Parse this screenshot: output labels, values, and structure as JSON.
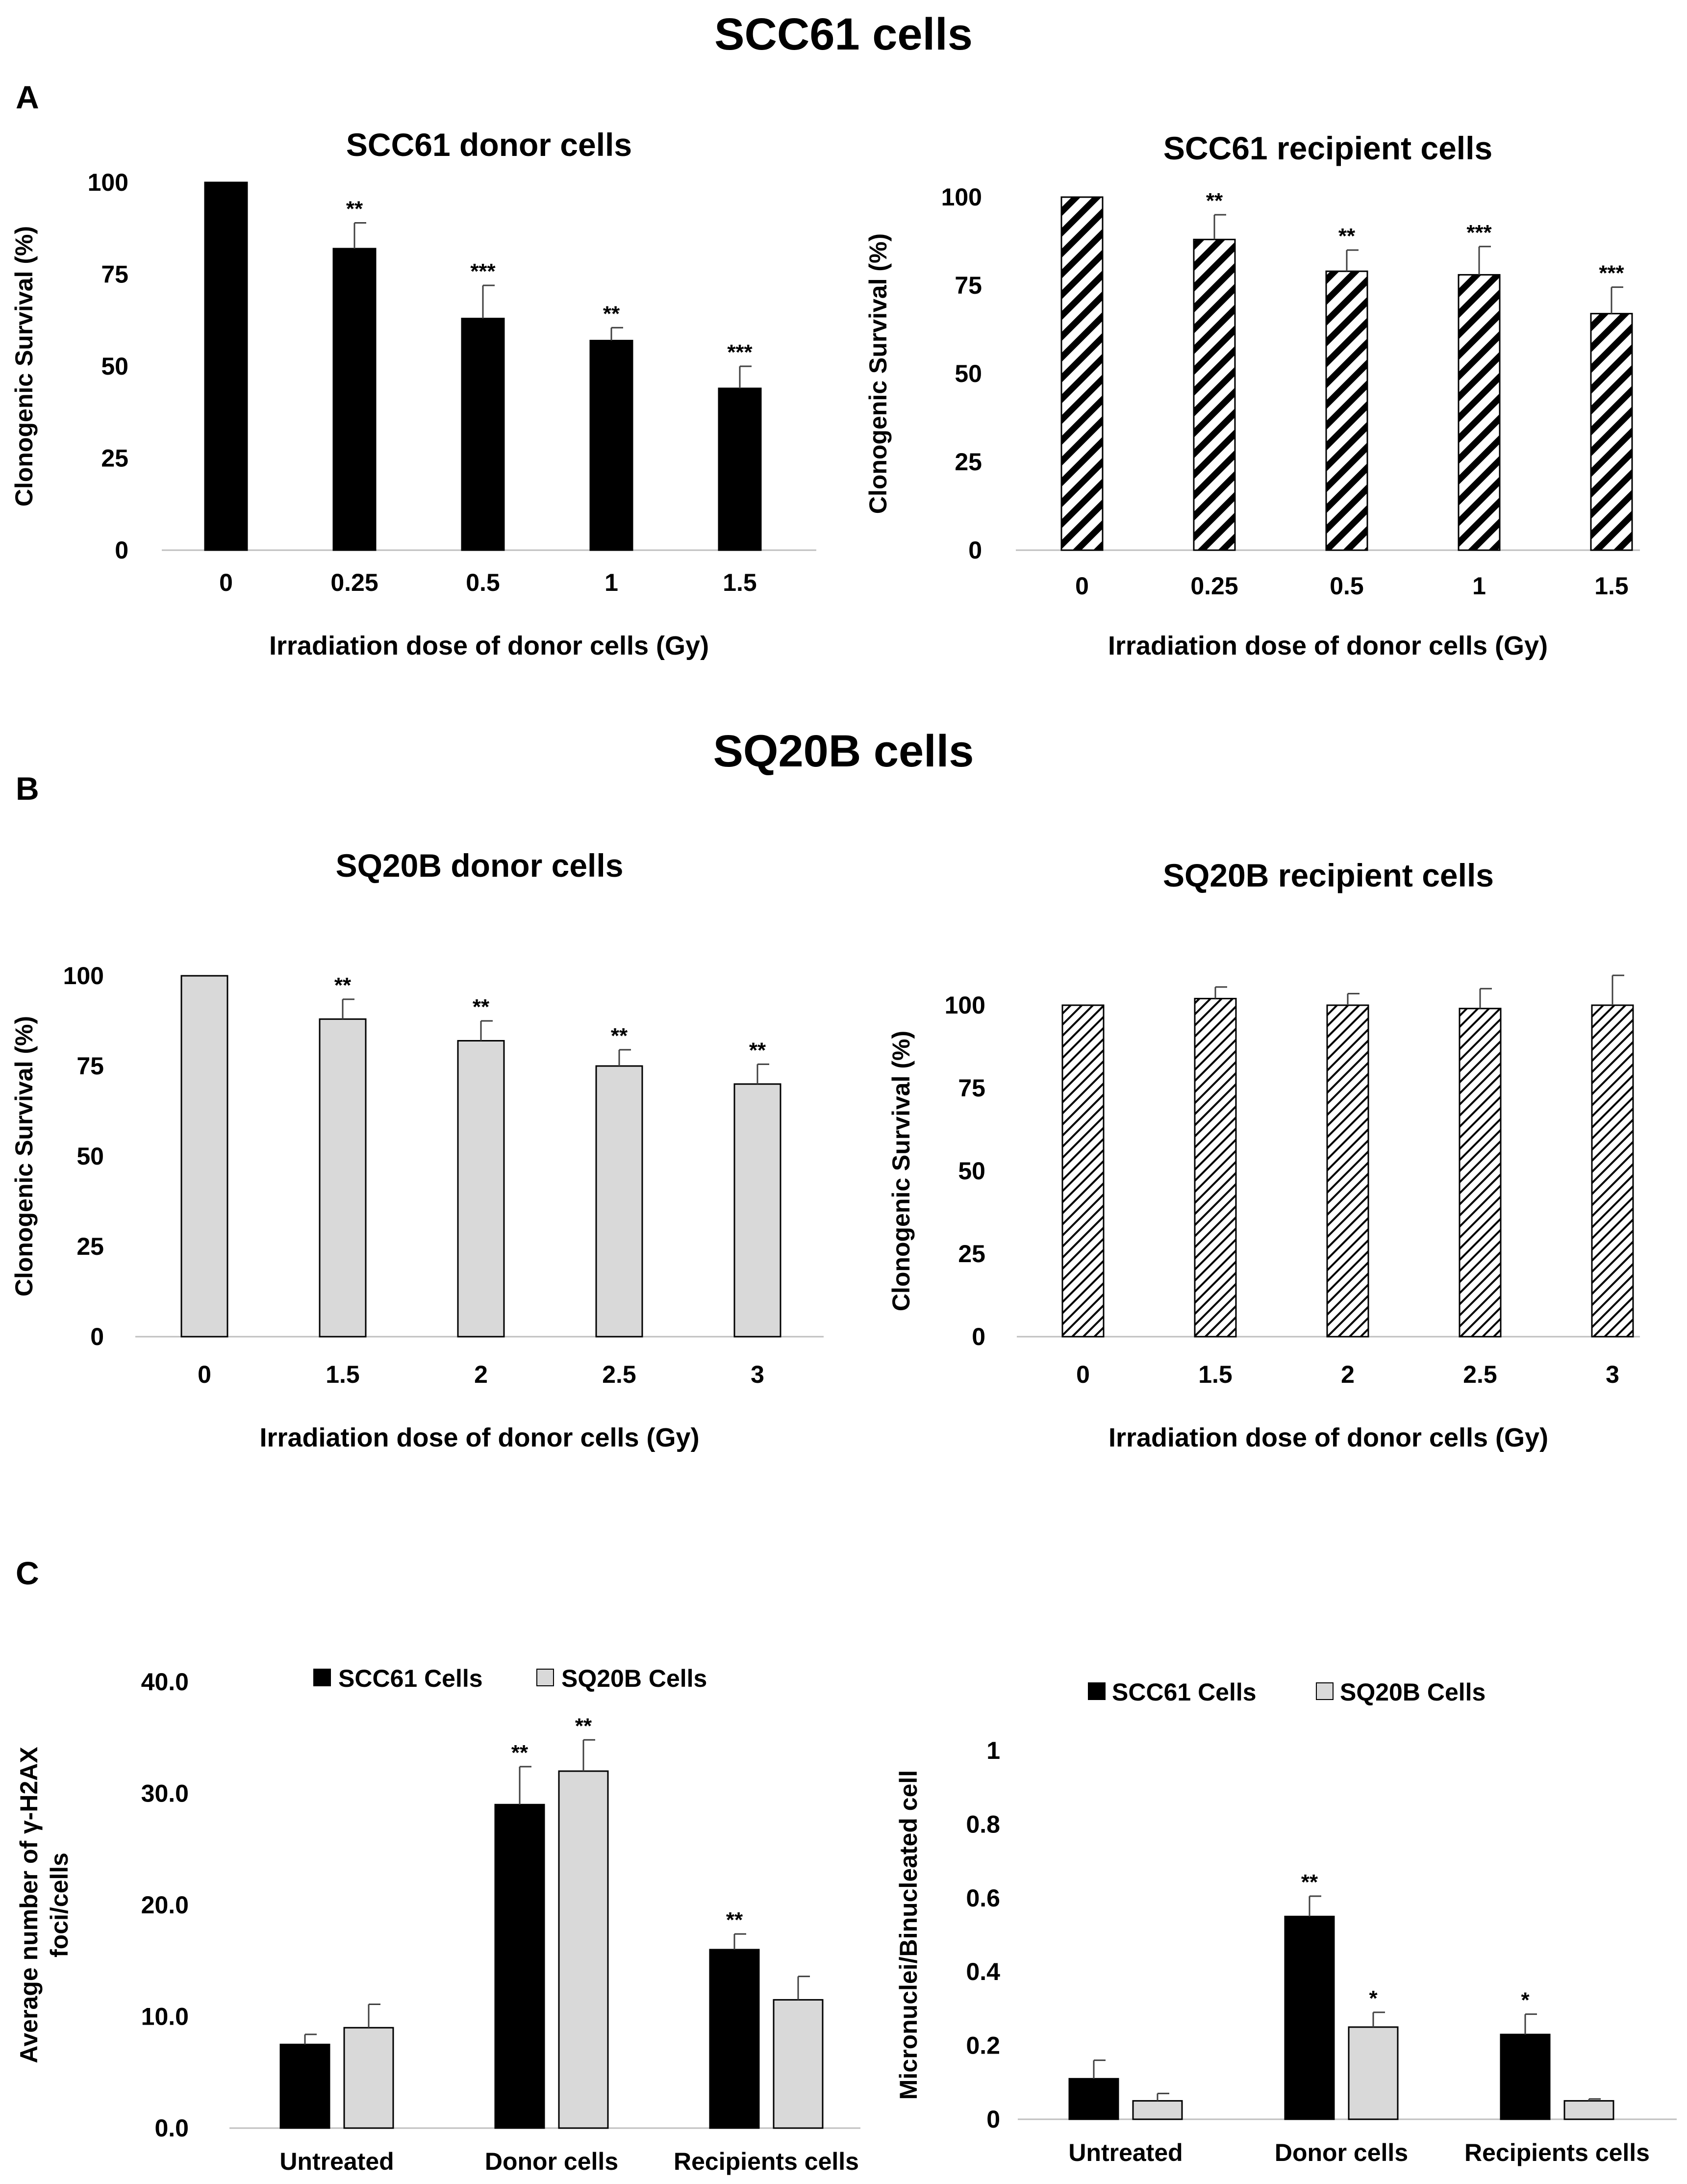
{
  "headings": {
    "scc61": "SCC61 cells",
    "sq20b": "SQ20B cells"
  },
  "panels": {
    "a": "A",
    "b": "B",
    "c": "C"
  },
  "colors": {
    "black": "#000000",
    "light_gray": "#d9d9d9",
    "axis_gray": "#bfbfbf",
    "error_bar": "#404040"
  },
  "chart_data": [
    {
      "id": "scc61_donor",
      "type": "bar",
      "title": "SCC61 donor cells",
      "xlabel": "Irradiation dose of donor cells (Gy)",
      "ylabel": "Clonogenic Survival (%)",
      "categories": [
        "0",
        "0.25",
        "0.5",
        "1",
        "1.5"
      ],
      "ylim": [
        0,
        100
      ],
      "yticks": [
        "0",
        "25",
        "50",
        "75",
        "100"
      ],
      "fill": "solid-black",
      "series": [
        {
          "name": "SCC61 donor cells",
          "values": [
            100,
            82,
            63,
            57,
            44
          ],
          "errors": [
            0,
            7,
            9,
            3.5,
            6
          ],
          "significance": [
            "",
            "**",
            "***",
            "**",
            "***"
          ]
        }
      ]
    },
    {
      "id": "scc61_recipient",
      "type": "bar",
      "title": "SCC61 recipient cells",
      "xlabel": "Irradiation dose of donor cells (Gy)",
      "ylabel": "Clonogenic Survival (%)",
      "categories": [
        "0",
        "0.25",
        "0.5",
        "1",
        "1.5"
      ],
      "ylim": [
        0,
        100
      ],
      "yticks": [
        "0",
        "25",
        "50",
        "75",
        "100"
      ],
      "fill": "wide-hatch",
      "series": [
        {
          "name": "SCC61 recipient cells",
          "values": [
            100,
            88,
            79,
            78,
            67
          ],
          "errors": [
            0,
            7,
            6,
            8,
            7.5
          ],
          "significance": [
            "",
            "**",
            "**",
            "***",
            "***"
          ]
        }
      ]
    },
    {
      "id": "sq20b_donor",
      "type": "bar",
      "title": "SQ20B donor cells",
      "xlabel": "Irradiation dose of donor cells (Gy)",
      "ylabel": "Clonogenic Survival (%)",
      "categories": [
        "0",
        "1.5",
        "2",
        "2.5",
        "3"
      ],
      "ylim": [
        0,
        100
      ],
      "yticks": [
        "0",
        "25",
        "50",
        "75",
        "100"
      ],
      "fill": "solid-gray",
      "series": [
        {
          "name": "SQ20B donor cells",
          "values": [
            100,
            88,
            82,
            75,
            70
          ],
          "errors": [
            0,
            5.5,
            5.5,
            4.5,
            5.5
          ],
          "significance": [
            "",
            "**",
            "**",
            "**",
            "**"
          ]
        }
      ]
    },
    {
      "id": "sq20b_recipient",
      "type": "bar",
      "title": "SQ20B recipient cells",
      "xlabel": "Irradiation dose of donor cells (Gy)",
      "ylabel": "Clonogenic Survival (%)",
      "categories": [
        "0",
        "1.5",
        "2",
        "2.5",
        "3"
      ],
      "ylim": [
        0,
        100
      ],
      "yticks": [
        "0",
        "25",
        "50",
        "75",
        "100"
      ],
      "fill": "fine-hatch",
      "series": [
        {
          "name": "SQ20B recipient cells",
          "values": [
            100,
            102,
            100,
            99,
            100
          ],
          "errors": [
            0,
            3.5,
            3.5,
            6,
            9
          ],
          "significance": [
            "",
            "",
            "",
            "",
            ""
          ]
        }
      ]
    },
    {
      "id": "h2ax",
      "type": "bar",
      "title": "",
      "xlabel": "",
      "ylabel": "Average number of γ-H2AX foci/cells",
      "ylabel_lines": [
        "Average number of γ-H2AX",
        "foci/cells"
      ],
      "categories": [
        "Untreated",
        "Donor cells",
        "Recipients cells"
      ],
      "ylim": [
        0,
        40
      ],
      "yticks": [
        "0.0",
        "10.0",
        "20.0",
        "30.0",
        "40.0"
      ],
      "legend": "top-center",
      "series": [
        {
          "name": "SCC61 Cells",
          "color": "#000000",
          "values": [
            7.5,
            29,
            16
          ],
          "errors": [
            0.9,
            3.4,
            1.4
          ],
          "significance": [
            "",
            "**",
            "**"
          ]
        },
        {
          "name": "SQ20B Cells",
          "color": "#d9d9d9",
          "values": [
            9,
            32,
            11.5
          ],
          "errors": [
            2.1,
            2.8,
            2.1
          ],
          "significance": [
            "",
            "**",
            ""
          ]
        }
      ]
    },
    {
      "id": "micronuclei",
      "type": "bar",
      "title": "",
      "xlabel": "",
      "ylabel": "Micronuclei/Binucleated cell",
      "categories": [
        "Untreated",
        "Donor cells",
        "Recipients cells"
      ],
      "ylim": [
        0,
        1
      ],
      "yticks": [
        "0",
        "0.2",
        "0.4",
        "0.6",
        "0.8",
        "1"
      ],
      "legend": "top-center",
      "series": [
        {
          "name": "SCC61 Cells",
          "color": "#000000",
          "values": [
            0.11,
            0.55,
            0.23
          ],
          "errors": [
            0.05,
            0.055,
            0.055
          ],
          "significance": [
            "",
            "**",
            "*"
          ]
        },
        {
          "name": "SQ20B Cells",
          "color": "#d9d9d9",
          "values": [
            0.05,
            0.25,
            0.05
          ],
          "errors": [
            0.02,
            0.04,
            0.005
          ],
          "significance": [
            "",
            "*",
            ""
          ]
        }
      ]
    }
  ]
}
